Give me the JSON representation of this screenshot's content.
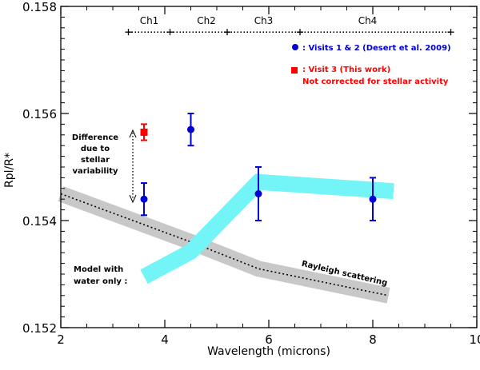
{
  "chart_data": {
    "type": "scatter",
    "title": "",
    "xlabel": "Wavelength (microns)",
    "ylabel": "Rpl/R*",
    "xlim": [
      2,
      10
    ],
    "ylim": [
      0.152,
      0.158
    ],
    "xticks": [
      2,
      4,
      6,
      8,
      10
    ],
    "yticks": [
      0.152,
      0.154,
      0.156,
      0.158
    ],
    "xtick_labels": [
      "2",
      "4",
      "6",
      "8",
      "10"
    ],
    "ytick_labels": [
      "0.152",
      "0.154",
      "0.156",
      "0.158"
    ],
    "channels": {
      "y": 0.15752,
      "boundaries": [
        3.3,
        4.1,
        5.2,
        6.6,
        9.5
      ],
      "labels": [
        {
          "name": "Ch1",
          "x": 3.7
        },
        {
          "name": "Ch2",
          "x": 4.8
        },
        {
          "name": "Ch3",
          "x": 5.9
        },
        {
          "name": "Ch4",
          "x": 7.9
        }
      ]
    },
    "series": [
      {
        "name": ": Visits 1 & 2 (Desert et al. 2009)",
        "color": "#0000d6",
        "marker": "circle",
        "points": [
          {
            "x": 3.6,
            "y": 0.1544,
            "err": 0.0003
          },
          {
            "x": 4.5,
            "y": 0.1557,
            "err": 0.0003
          },
          {
            "x": 5.8,
            "y": 0.1545,
            "err": 0.0005
          },
          {
            "x": 8.0,
            "y": 0.1544,
            "err": 0.0004
          }
        ]
      },
      {
        "name": ": Visit 3 (This work)",
        "note": "Not corrected for stellar activity",
        "color": "#ff0000",
        "marker": "square",
        "points": [
          {
            "x": 3.6,
            "y": 0.15565,
            "err": 0.00015
          }
        ]
      }
    ],
    "models": [
      {
        "name": "Rayleigh scattering",
        "color": "#c8c8c8",
        "center_color": "#000000",
        "x": [
          2.0,
          4.5,
          5.8,
          8.3
        ],
        "y": [
          0.1545,
          0.1536,
          0.1531,
          0.1526
        ]
      },
      {
        "name": "Model with water only",
        "color": "#73f5f8",
        "x": [
          3.6,
          4.5,
          5.8,
          8.4
        ],
        "y": [
          0.15295,
          0.15342,
          0.15472,
          0.15455
        ]
      }
    ],
    "annotations": {
      "variability": [
        "Difference",
        "due to",
        "stellar",
        "variability"
      ],
      "rayleigh": "Rayleigh scattering",
      "water": [
        "Model with",
        "water only :"
      ]
    }
  }
}
